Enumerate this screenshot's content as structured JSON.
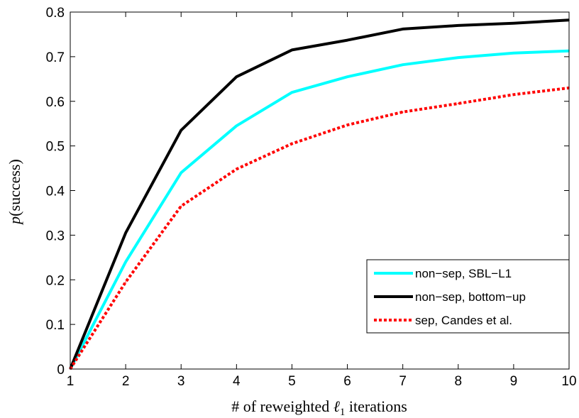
{
  "chart_data": {
    "type": "line",
    "title": "",
    "xlabel_prefix": "# of reweighted ",
    "xlabel_symbol": "ℓ",
    "xlabel_sub": "1",
    "xlabel_suffix": " iterations",
    "ylabel_italic": "p",
    "ylabel_rest": "(success)",
    "xlim": [
      1,
      10
    ],
    "ylim": [
      0,
      0.8
    ],
    "xticks": [
      1,
      2,
      3,
      4,
      5,
      6,
      7,
      8,
      9,
      10
    ],
    "yticks": [
      0,
      0.1,
      0.2,
      0.3,
      0.4,
      0.5,
      0.6,
      0.7,
      0.8
    ],
    "ytick_labels": [
      "0",
      "0.1",
      "0.2",
      "0.3",
      "0.4",
      "0.5",
      "0.6",
      "0.7",
      "0.8"
    ],
    "grid": false,
    "legend_position": "bottom-right",
    "x": [
      1,
      2,
      3,
      4,
      5,
      6,
      7,
      8,
      9,
      10
    ],
    "series": [
      {
        "name": "non−sep, SBL−L1",
        "color": "#00ffff",
        "dash": "solid",
        "values": [
          0.0,
          0.24,
          0.44,
          0.545,
          0.62,
          0.655,
          0.682,
          0.698,
          0.708,
          0.713
        ]
      },
      {
        "name": "non−sep, bottom−up",
        "color": "#000000",
        "dash": "solid",
        "values": [
          0.0,
          0.305,
          0.535,
          0.655,
          0.715,
          0.737,
          0.762,
          0.77,
          0.775,
          0.782
        ]
      },
      {
        "name": "sep, Candes et al.",
        "color": "#ff0000",
        "dash": "dotted",
        "values": [
          0.0,
          0.195,
          0.365,
          0.448,
          0.505,
          0.547,
          0.576,
          0.595,
          0.615,
          0.63
        ]
      }
    ]
  }
}
